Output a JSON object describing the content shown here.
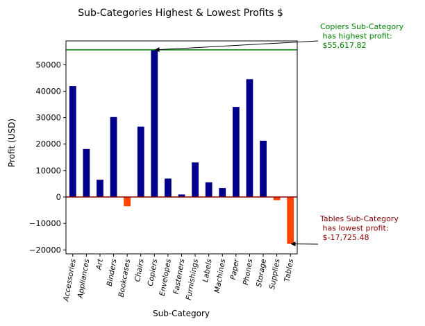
{
  "chart_data": {
    "type": "bar",
    "title": "Sub-Categories Highest & Lowest Profits $",
    "xlabel": "Sub-Category",
    "ylabel": "Profit (USD)",
    "ylim": [
      -21500,
      59000
    ],
    "yticks": [
      -20000,
      -10000,
      0,
      10000,
      20000,
      30000,
      40000,
      50000
    ],
    "grid": false,
    "categories": [
      "Accessories",
      "Appliances",
      "Art",
      "Binders",
      "Bookcases",
      "Chairs",
      "Copiers",
      "Envelopes",
      "Fasteners",
      "Furnishings",
      "Labels",
      "Machines",
      "Paper",
      "Phones",
      "Storage",
      "Supplies",
      "Tables"
    ],
    "values": [
      41937,
      18138,
      6528,
      30222,
      -3473,
      26590,
      55618,
      6964,
      950,
      13059,
      5546,
      3385,
      34054,
      44516,
      21279,
      -1189,
      -17725
    ],
    "colors": {
      "positive": "#00008b",
      "negative": "#ff4500"
    },
    "reference_lines": [
      {
        "value": 55617.82,
        "color": "#008000"
      },
      {
        "value": 0,
        "color": "#8b0000"
      }
    ],
    "annotations": [
      {
        "category": "Copiers",
        "value": 55617.82,
        "color": "#008000",
        "lines": [
          "Copiers Sub-Category",
          " has highest profit:",
          " $55,617.82"
        ]
      },
      {
        "category": "Tables",
        "value": -17725.48,
        "color": "#8b0000",
        "lines": [
          "Tables Sub-Category",
          " has lowest profit:",
          " $-17,725.48"
        ]
      }
    ]
  }
}
